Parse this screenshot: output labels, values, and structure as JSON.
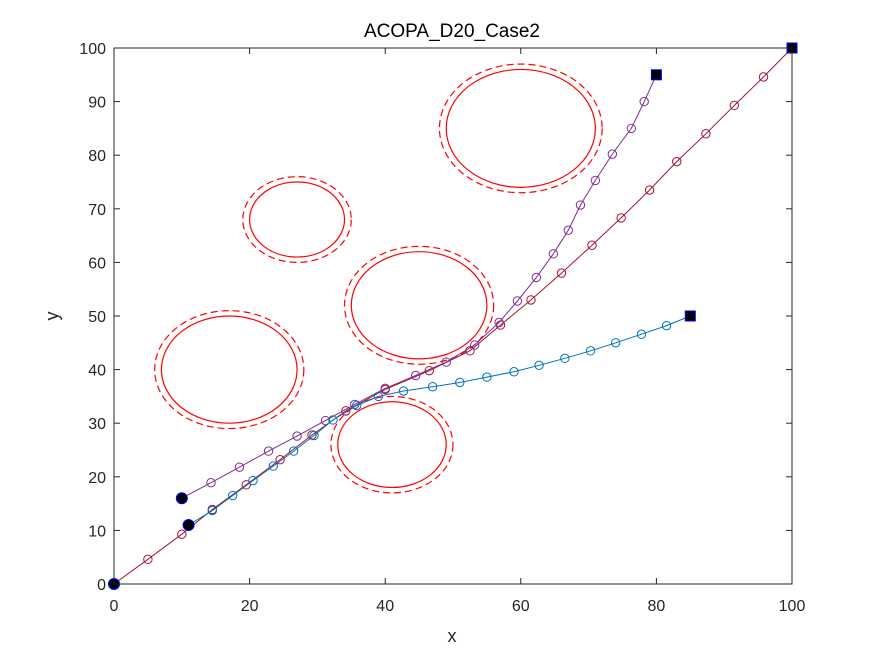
{
  "chart_data": {
    "type": "line",
    "title": "ACOPA_D20_Case2",
    "xlabel": "x",
    "ylabel": "y",
    "xlim": [
      0,
      100
    ],
    "ylim": [
      0,
      100
    ],
    "xticks": [
      "0",
      "20",
      "40",
      "60",
      "80",
      "100"
    ],
    "yticks": [
      "0",
      "10",
      "20",
      "30",
      "40",
      "50",
      "60",
      "70",
      "80",
      "90",
      "100"
    ],
    "grid": false,
    "legend": "none",
    "obstacles": [
      {
        "cx": 17,
        "cy": 40,
        "rx": 10,
        "ry": 10,
        "outer_rx": 11,
        "outer_ry": 11
      },
      {
        "cx": 27,
        "cy": 68,
        "rx": 7,
        "ry": 7,
        "outer_rx": 8,
        "outer_ry": 8
      },
      {
        "cx": 45,
        "cy": 52,
        "rx": 10,
        "ry": 10,
        "outer_rx": 11,
        "outer_ry": 11
      },
      {
        "cx": 41,
        "cy": 26,
        "rx": 8,
        "ry": 8,
        "outer_rx": 9,
        "outer_ry": 9
      },
      {
        "cx": 60,
        "cy": 85,
        "rx": 11,
        "ry": 11,
        "outer_rx": 12,
        "outer_ry": 12
      }
    ],
    "obstacle_color": "#ff0000",
    "series": [
      {
        "color": "#a2142f",
        "points": [
          [
            0,
            0
          ],
          [
            5,
            4.6
          ],
          [
            10,
            9.3
          ],
          [
            14.5,
            13.9
          ],
          [
            19.5,
            18.5
          ],
          [
            24.5,
            23.2
          ],
          [
            29.2,
            27.8
          ],
          [
            34.2,
            32.3
          ],
          [
            40,
            36.3
          ],
          [
            46.5,
            39.8
          ],
          [
            52.5,
            43.5
          ],
          [
            57,
            48.3
          ],
          [
            61.5,
            53
          ],
          [
            66,
            58
          ],
          [
            70.5,
            63.2
          ],
          [
            74.8,
            68.3
          ],
          [
            79,
            73.5
          ],
          [
            83,
            78.8
          ],
          [
            87.3,
            84
          ],
          [
            91.5,
            89.3
          ],
          [
            95.8,
            94.6
          ],
          [
            100,
            100
          ]
        ]
      },
      {
        "color": "#7e2f8e",
        "points": [
          [
            10,
            16
          ],
          [
            14.3,
            18.9
          ],
          [
            18.5,
            21.8
          ],
          [
            22.8,
            24.8
          ],
          [
            27,
            27.6
          ],
          [
            31.2,
            30.5
          ],
          [
            35.5,
            33.5
          ],
          [
            40,
            36.5
          ],
          [
            44.5,
            38.9
          ],
          [
            49,
            41.4
          ],
          [
            53.2,
            44.6
          ],
          [
            56.8,
            48.8
          ],
          [
            59.5,
            52.8
          ],
          [
            62.3,
            57.2
          ],
          [
            64.8,
            61.6
          ],
          [
            67,
            66
          ],
          [
            68.8,
            70.7
          ],
          [
            71,
            75.3
          ],
          [
            73.5,
            80.2
          ],
          [
            76.3,
            85
          ],
          [
            78.2,
            90
          ],
          [
            80,
            95
          ]
        ]
      },
      {
        "color": "#0072bd",
        "points": [
          [
            11,
            11
          ],
          [
            14.5,
            13.7
          ],
          [
            17.5,
            16.5
          ],
          [
            20.5,
            19.3
          ],
          [
            23.5,
            22
          ],
          [
            26.5,
            24.8
          ],
          [
            29.5,
            27.7
          ],
          [
            32.3,
            30.6
          ],
          [
            35.8,
            33.3
          ],
          [
            39,
            35
          ],
          [
            42.7,
            36
          ],
          [
            47,
            36.8
          ],
          [
            51,
            37.6
          ],
          [
            55,
            38.6
          ],
          [
            59,
            39.6
          ],
          [
            62.7,
            40.8
          ],
          [
            66.5,
            42.1
          ],
          [
            70.3,
            43.5
          ],
          [
            74,
            45
          ],
          [
            77.8,
            46.6
          ],
          [
            81.5,
            48.2
          ],
          [
            85,
            50
          ]
        ]
      }
    ],
    "start_points": [
      [
        0,
        0
      ],
      [
        10,
        16
      ],
      [
        11,
        11
      ]
    ],
    "end_points": [
      [
        100,
        100
      ],
      [
        80,
        95
      ],
      [
        85,
        50
      ]
    ]
  }
}
